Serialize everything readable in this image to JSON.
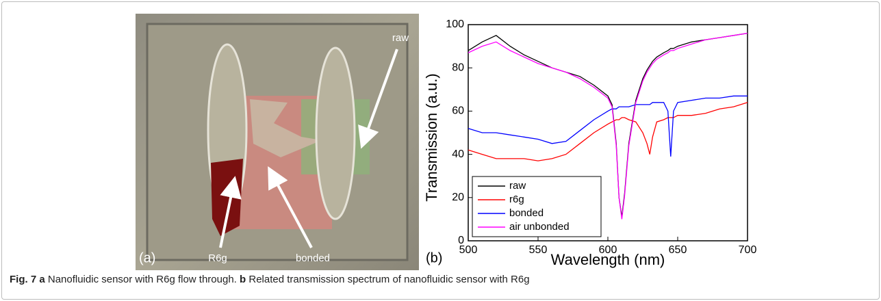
{
  "figure": {
    "panel_a": {
      "label": "(a)",
      "arrow_labels": [
        "raw",
        "R6g",
        "bonded"
      ]
    },
    "caption": {
      "fig": "Fig. 7",
      "a": "a",
      "a_text": "Nanofluidic sensor with R6g flow through.",
      "b": "b",
      "b_text": "Related transmission spectrum of nanofluidic sensor with R6g"
    }
  },
  "chart_data": {
    "type": "line",
    "panel_label": "(b)",
    "x_label": "Wavelength (nm)",
    "y_label": "Transmission (a.u.)",
    "x": [
      500,
      510,
      520,
      530,
      540,
      550,
      560,
      570,
      580,
      590,
      600,
      603,
      606,
      608,
      610,
      612,
      615,
      620,
      625,
      628,
      630,
      632,
      635,
      640,
      643,
      645,
      647,
      650,
      660,
      670,
      680,
      690,
      700
    ],
    "series": [
      {
        "name": "raw",
        "color": "#000000",
        "values": [
          88,
          92,
          95,
          90,
          86,
          83,
          80,
          78,
          76,
          72,
          67,
          63,
          45,
          20,
          11,
          22,
          45,
          65,
          75,
          79,
          81,
          83,
          85,
          87,
          88,
          89,
          89,
          90,
          92,
          93,
          94,
          95,
          96
        ]
      },
      {
        "name": "r6g",
        "color": "#ff0000",
        "values": [
          42,
          40,
          38,
          38,
          38,
          37,
          38,
          40,
          45,
          50,
          54,
          55,
          56,
          56,
          57,
          57,
          56,
          55,
          50,
          45,
          40,
          48,
          55,
          56,
          57,
          57,
          57,
          58,
          58,
          59,
          61,
          62,
          64
        ]
      },
      {
        "name": "bonded",
        "color": "#0000ff",
        "values": [
          52,
          50,
          50,
          49,
          48,
          47,
          45,
          46,
          51,
          56,
          60,
          61,
          61,
          62,
          62,
          62,
          62,
          63,
          63,
          63,
          63,
          64,
          64,
          64,
          60,
          39,
          60,
          64,
          65,
          66,
          66,
          67,
          67
        ]
      },
      {
        "name": "air unbonded",
        "color": "#ff00ff",
        "values": [
          87,
          90,
          92,
          88,
          85,
          82,
          80,
          78,
          75,
          71,
          66,
          62,
          44,
          20,
          10,
          21,
          44,
          64,
          74,
          78,
          80,
          82,
          84,
          86,
          87,
          88,
          88,
          89,
          91,
          93,
          94,
          95,
          96
        ]
      }
    ],
    "xlim": [
      500,
      700
    ],
    "ylim": [
      0,
      100
    ],
    "xticks": [
      500,
      550,
      600,
      650,
      700
    ],
    "yticks": [
      0,
      20,
      40,
      60,
      80,
      100
    ],
    "legend": "lower left"
  }
}
